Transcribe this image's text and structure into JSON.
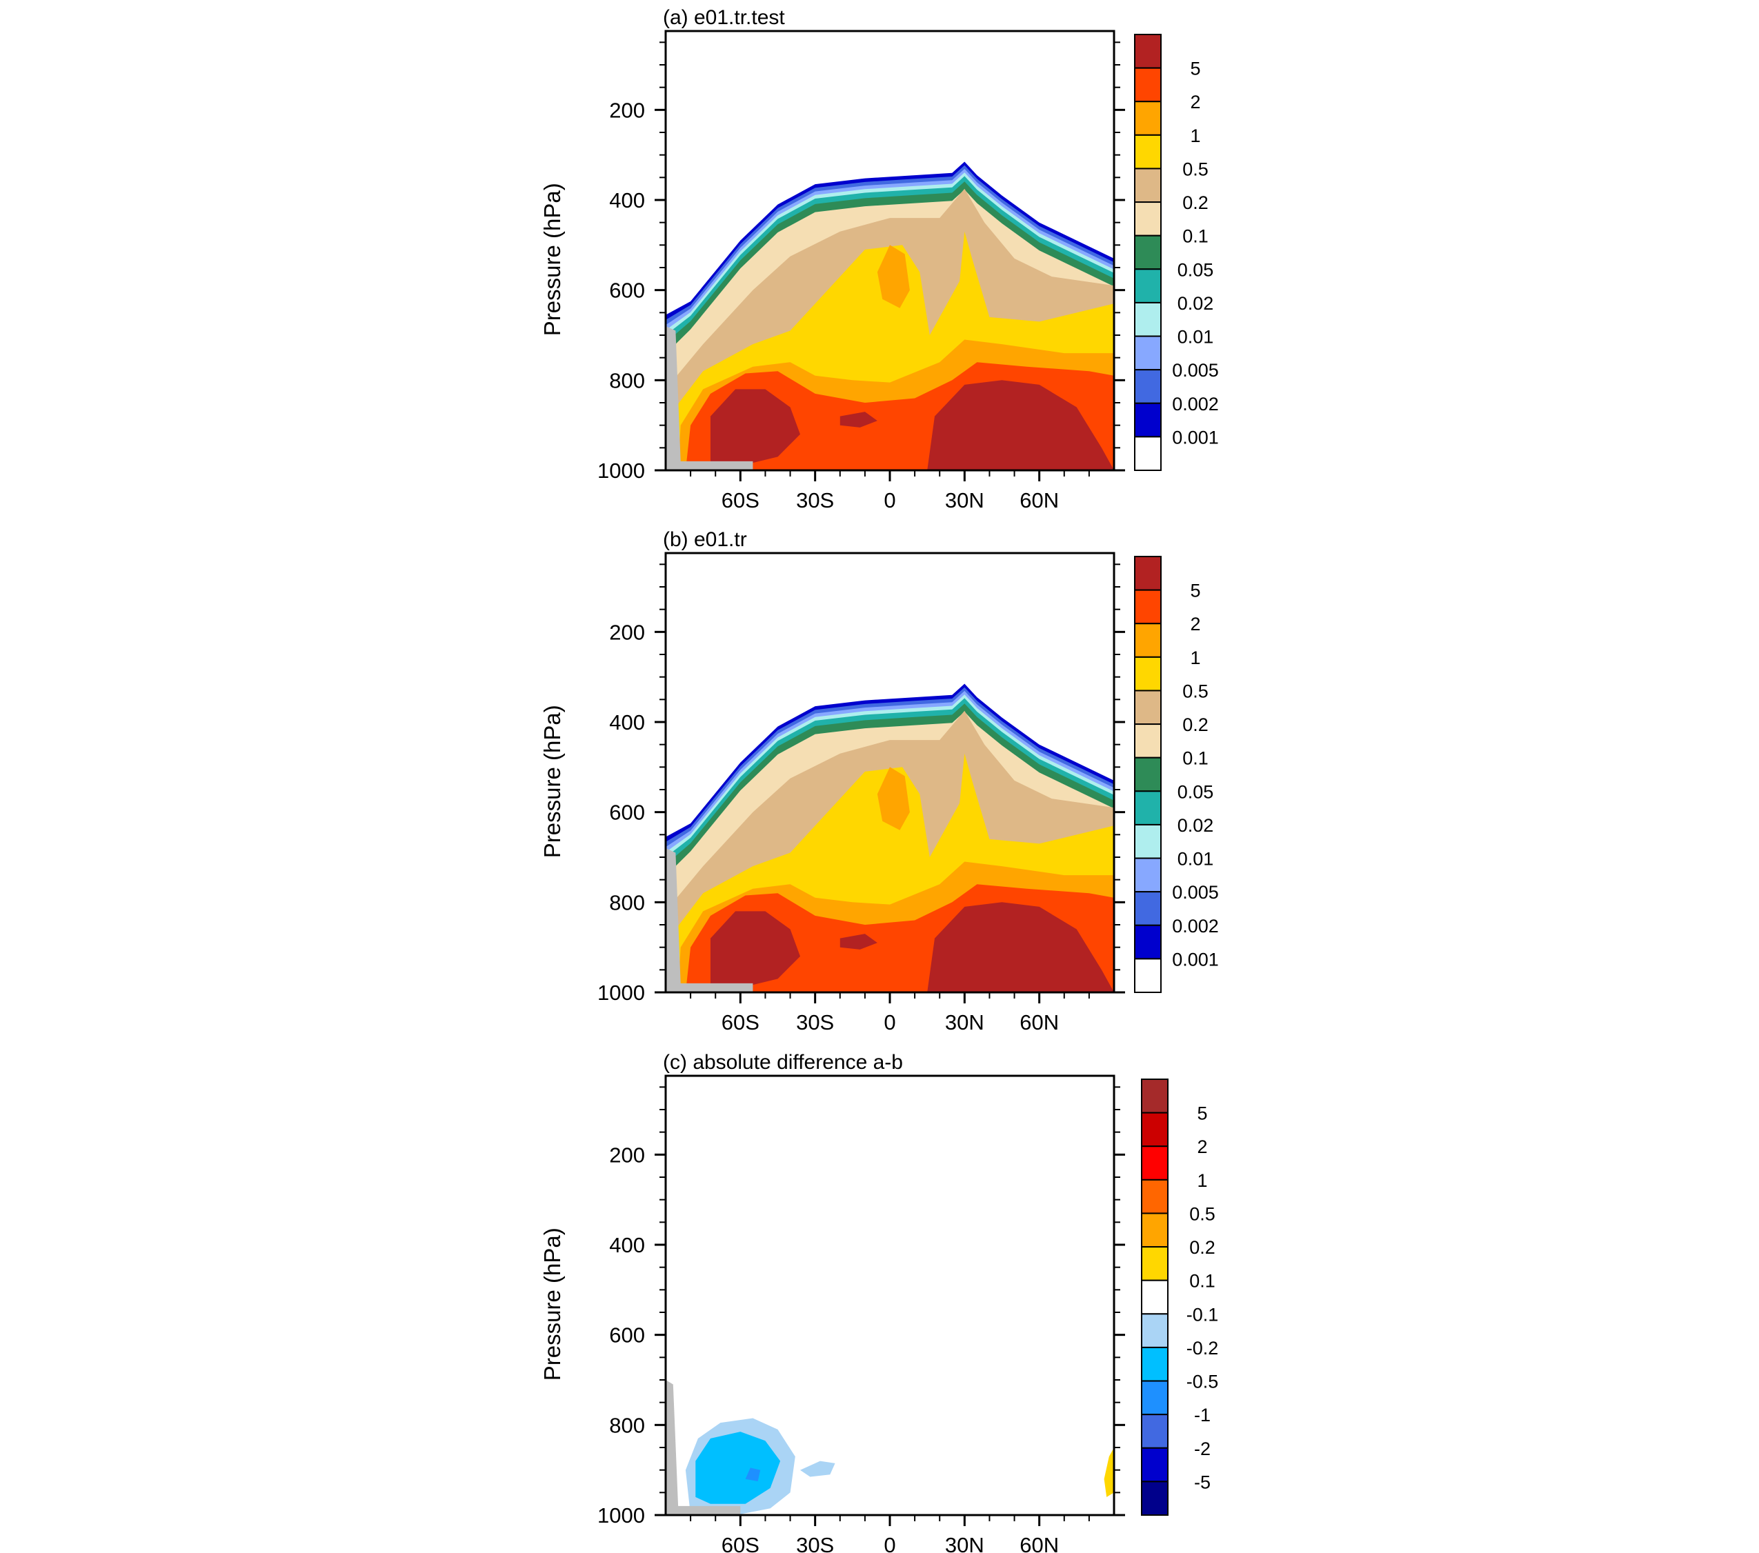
{
  "figure": {
    "panels": [
      {
        "id": "a",
        "title": "(a) e01.tr.test",
        "ylabel": "Pressure (hPa)",
        "variant": "field",
        "colorbar": {
          "labels": [
            "5",
            "2",
            "1",
            "0.5",
            "0.2",
            "0.1",
            "0.05",
            "0.02",
            "0.01",
            "0.005",
            "0.002",
            "0.001"
          ],
          "colors": [
            "#b22222",
            "#ff4500",
            "#ffa500",
            "#ffd700",
            "#deb887",
            "#f5deb3",
            "#2e8b57",
            "#20b2aa",
            "#afeeee",
            "#87a8ff",
            "#4169e1",
            "#0000cd",
            "#ffffff"
          ]
        }
      },
      {
        "id": "b",
        "title": "(b) e01.tr",
        "ylabel": "Pressure (hPa)",
        "variant": "field",
        "colorbar": {
          "labels": [
            "5",
            "2",
            "1",
            "0.5",
            "0.2",
            "0.1",
            "0.05",
            "0.02",
            "0.01",
            "0.005",
            "0.002",
            "0.001"
          ],
          "colors": [
            "#b22222",
            "#ff4500",
            "#ffa500",
            "#ffd700",
            "#deb887",
            "#f5deb3",
            "#2e8b57",
            "#20b2aa",
            "#afeeee",
            "#87a8ff",
            "#4169e1",
            "#0000cd",
            "#ffffff"
          ]
        }
      },
      {
        "id": "c",
        "title": "(c) absolute difference a-b",
        "ylabel": "Pressure (hPa)",
        "variant": "diff",
        "colorbar": {
          "labels": [
            "5",
            "2",
            "1",
            "0.5",
            "0.2",
            "0.1",
            "-0.1",
            "-0.2",
            "-0.5",
            "-1",
            "-2",
            "-5"
          ],
          "colors": [
            "#a52a2a",
            "#cc0000",
            "#ff0000",
            "#ff6600",
            "#ffa500",
            "#ffd700",
            "#ffffff",
            "#aad4f5",
            "#00bfff",
            "#1e90ff",
            "#4169e1",
            "#0000cd",
            "#00008b"
          ]
        }
      }
    ]
  },
  "chart_data": [
    {
      "type": "heatmap",
      "title": "(a) e01.tr.test",
      "ylabel": "Pressure (hPa)",
      "y_ticks": [
        "200",
        "400",
        "600",
        "800",
        "1000"
      ],
      "y_tick_values": [
        200,
        400,
        600,
        800,
        1000
      ],
      "ylim": [
        1000,
        25
      ],
      "x_ticks": [
        "60S",
        "30S",
        "0",
        "30N",
        "60N"
      ],
      "x_tick_values": [
        -60,
        -30,
        0,
        30,
        60
      ],
      "xlim": [
        -90,
        90
      ],
      "levels": [
        "0.001",
        "0.002",
        "0.005",
        "0.01",
        "0.02",
        "0.05",
        "0.1",
        "0.2",
        "0.5",
        "1",
        "2",
        "5"
      ]
    },
    {
      "type": "heatmap",
      "title": "(b) e01.tr",
      "ylabel": "Pressure (hPa)",
      "y_ticks": [
        "200",
        "400",
        "600",
        "800",
        "1000"
      ],
      "y_tick_values": [
        200,
        400,
        600,
        800,
        1000
      ],
      "ylim": [
        1000,
        25
      ],
      "x_ticks": [
        "60S",
        "30S",
        "0",
        "30N",
        "60N"
      ],
      "x_tick_values": [
        -60,
        -30,
        0,
        30,
        60
      ],
      "xlim": [
        -90,
        90
      ],
      "levels": [
        "0.001",
        "0.002",
        "0.005",
        "0.01",
        "0.02",
        "0.05",
        "0.1",
        "0.2",
        "0.5",
        "1",
        "2",
        "5"
      ]
    },
    {
      "type": "heatmap",
      "title": "(c) absolute difference a-b",
      "ylabel": "Pressure (hPa)",
      "y_ticks": [
        "200",
        "400",
        "600",
        "800",
        "1000"
      ],
      "y_tick_values": [
        200,
        400,
        600,
        800,
        1000
      ],
      "ylim": [
        1000,
        25
      ],
      "x_ticks": [
        "60S",
        "30S",
        "0",
        "30N",
        "60N"
      ],
      "x_tick_values": [
        -60,
        -30,
        0,
        30,
        60
      ],
      "xlim": [
        -90,
        90
      ],
      "levels": [
        "-5",
        "-2",
        "-1",
        "-0.5",
        "-0.2",
        "-0.1",
        "0.1",
        "0.2",
        "0.5",
        "1",
        "2",
        "5"
      ]
    }
  ]
}
